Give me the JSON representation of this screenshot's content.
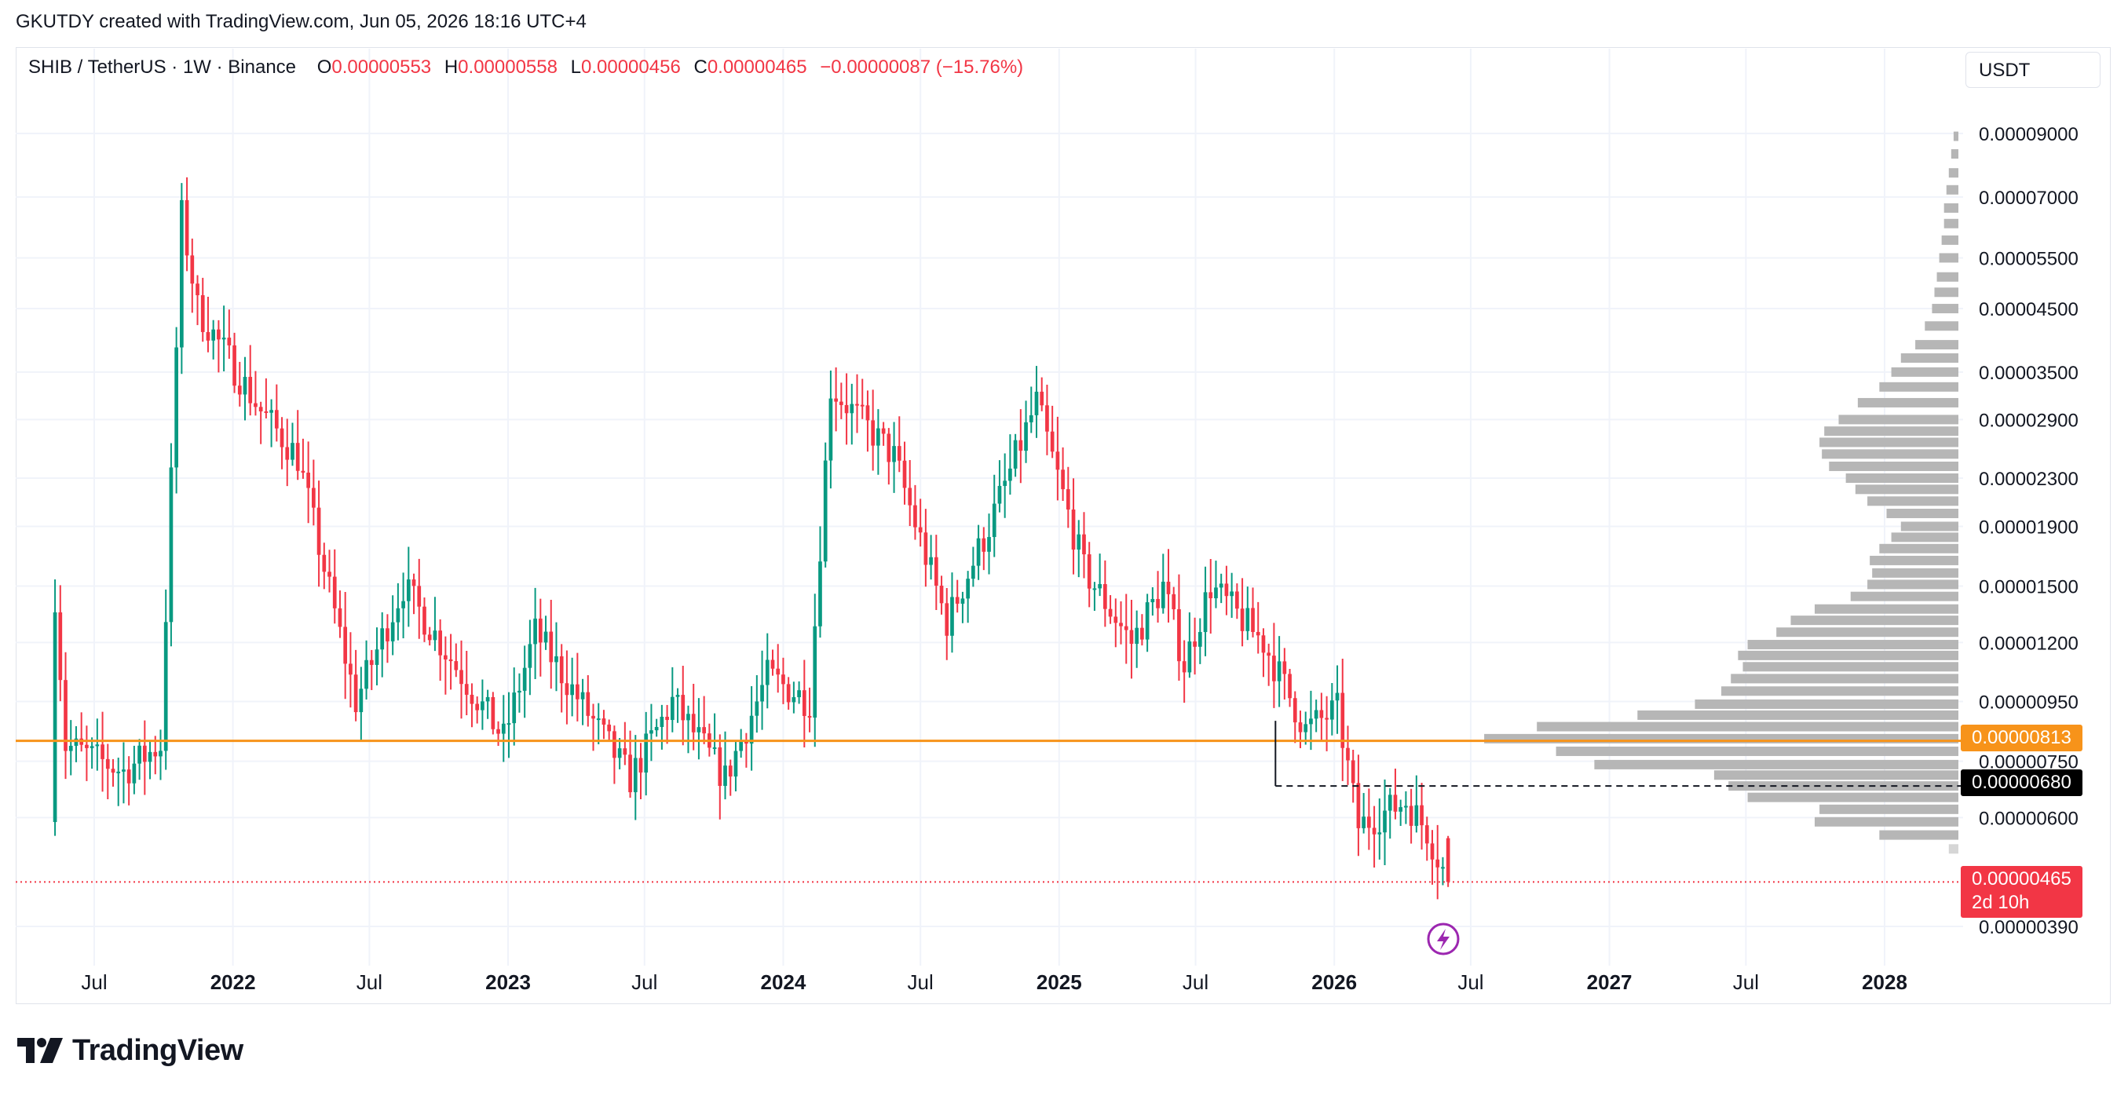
{
  "header": {
    "caption": "GKUTDY created with TradingView.com, Jun 05, 2026 18:16 UTC+4"
  },
  "legend": {
    "symbol": "SHIB / TetherUS · 1W · Binance",
    "o_label": "O",
    "o_value": "0.00000553",
    "h_label": "H",
    "h_value": "0.00000558",
    "l_label": "L",
    "l_value": "0.00000456",
    "c_label": "C",
    "c_value": "0.00000465",
    "change": "−0.00000087 (−15.76%)"
  },
  "currency_button": "USDT",
  "brand": {
    "name": "TradingView"
  },
  "colors": {
    "up": "#089981",
    "down": "#f23645",
    "level": "#f7931a",
    "profile": "#b2b2b2",
    "grid": "#f0f3fa"
  },
  "icons": {
    "flash": "lightning-icon",
    "logo": "tradingview-logo-icon"
  },
  "chart_data": {
    "type": "candlestick",
    "interval": "1W",
    "scale": "log",
    "ylim": [
      3.5e-06,
      9.5e-06
    ],
    "y_ticks": [
      "0.00009000",
      "0.00007000",
      "0.00005500",
      "0.00004500",
      "0.00003500",
      "0.00002900",
      "0.00002300",
      "0.00001900",
      "0.00001500",
      "0.00001200",
      "0.00000950",
      "0.00000750",
      "0.00000600",
      "0.00000390"
    ],
    "y_tick_values": [
      9e-05,
      7e-05,
      5.5e-05,
      4.5e-05,
      3.5e-05,
      2.9e-05,
      2.3e-05,
      1.9e-05,
      1.5e-05,
      1.2e-05,
      9.5e-06,
      7.5e-06,
      6e-06,
      3.9e-06
    ],
    "x_ticks": [
      "Jul",
      "2022",
      "Jul",
      "2023",
      "Jul",
      "2024",
      "Jul",
      "2025",
      "Jul",
      "2026",
      "Jul",
      "2027",
      "Jul",
      "2028"
    ],
    "x_tick_dates": [
      "2021-07-01",
      "2022-01-01",
      "2022-07-01",
      "2023-01-01",
      "2023-07-01",
      "2024-01-01",
      "2024-07-01",
      "2025-01-01",
      "2025-07-01",
      "2026-01-01",
      "2026-07-01",
      "2027-01-01",
      "2027-07-01",
      "2028-01-01"
    ],
    "x_tick_bold": [
      false,
      true,
      false,
      true,
      false,
      true,
      false,
      true,
      false,
      true,
      false,
      true,
      false,
      true
    ],
    "levels": [
      {
        "value": 8.13e-06,
        "label": "0.00000813",
        "style": "solid",
        "color": "#f7931a"
      },
      {
        "value": 6.8e-06,
        "label": "0.00000680",
        "style": "dashed",
        "color": "#131722",
        "start": "2025-10-15"
      }
    ],
    "last_price": {
      "value": 4.65e-06,
      "label": "0.00000465",
      "countdown": "2d 10h"
    },
    "anchors": [
      {
        "date": "2021-05-10",
        "close": 1.45e-05
      },
      {
        "date": "2021-05-24",
        "close": 8e-06
      },
      {
        "date": "2021-08-09",
        "close": 7.2e-06
      },
      {
        "date": "2021-09-27",
        "close": 8e-06
      },
      {
        "date": "2021-10-25",
        "close": 6.5e-05
      },
      {
        "date": "2021-11-15",
        "close": 4.5e-05
      },
      {
        "date": "2022-02-07",
        "close": 3e-05
      },
      {
        "date": "2022-03-28",
        "close": 2.5e-05
      },
      {
        "date": "2022-06-13",
        "close": 9.5e-06
      },
      {
        "date": "2022-08-15",
        "close": 1.5e-05
      },
      {
        "date": "2022-12-26",
        "close": 8.2e-06
      },
      {
        "date": "2023-02-06",
        "close": 1.25e-05
      },
      {
        "date": "2023-06-12",
        "close": 7e-06
      },
      {
        "date": "2023-08-07",
        "close": 9.5e-06
      },
      {
        "date": "2023-10-16",
        "close": 7e-06
      },
      {
        "date": "2023-12-11",
        "close": 1.05e-05
      },
      {
        "date": "2024-02-05",
        "close": 9.5e-06
      },
      {
        "date": "2024-03-04",
        "close": 3.3e-05
      },
      {
        "date": "2024-05-27",
        "close": 2.5e-05
      },
      {
        "date": "2024-08-05",
        "close": 1.3e-05
      },
      {
        "date": "2024-09-30",
        "close": 1.9e-05
      },
      {
        "date": "2024-12-02",
        "close": 3.1e-05
      },
      {
        "date": "2025-02-03",
        "close": 1.6e-05
      },
      {
        "date": "2025-04-07",
        "close": 1.2e-05
      },
      {
        "date": "2025-05-19",
        "close": 1.5e-05
      },
      {
        "date": "2025-06-16",
        "close": 1.1e-05
      },
      {
        "date": "2025-07-21",
        "close": 1.5e-05
      },
      {
        "date": "2025-09-29",
        "close": 1.2e-05
      },
      {
        "date": "2025-11-24",
        "close": 8.5e-06
      },
      {
        "date": "2026-01-05",
        "close": 9.2e-06
      },
      {
        "date": "2026-02-02",
        "close": 5.8e-06
      },
      {
        "date": "2026-04-06",
        "close": 6.4e-06
      },
      {
        "date": "2026-05-04",
        "close": 5.7e-06
      },
      {
        "date": "2026-06-01",
        "close": 4.65e-06
      }
    ],
    "volume_profile": [
      {
        "price": 8.9e-05,
        "weight": 0.02
      },
      {
        "price": 8.3e-05,
        "weight": 0.03
      },
      {
        "price": 7.7e-05,
        "weight": 0.04
      },
      {
        "price": 7.2e-05,
        "weight": 0.05
      },
      {
        "price": 6.7e-05,
        "weight": 0.06
      },
      {
        "price": 6.3e-05,
        "weight": 0.06
      },
      {
        "price": 5.9e-05,
        "weight": 0.07
      },
      {
        "price": 5.5e-05,
        "weight": 0.08
      },
      {
        "price": 5.1e-05,
        "weight": 0.09
      },
      {
        "price": 4.8e-05,
        "weight": 0.1
      },
      {
        "price": 4.5e-05,
        "weight": 0.11
      },
      {
        "price": 4.2e-05,
        "weight": 0.14
      },
      {
        "price": 3.9e-05,
        "weight": 0.18
      },
      {
        "price": 3.7e-05,
        "weight": 0.24
      },
      {
        "price": 3.5e-05,
        "weight": 0.28
      },
      {
        "price": 3.3e-05,
        "weight": 0.33
      },
      {
        "price": 3.1e-05,
        "weight": 0.42
      },
      {
        "price": 2.9e-05,
        "weight": 0.5
      },
      {
        "price": 2.77e-05,
        "weight": 0.56
      },
      {
        "price": 2.65e-05,
        "weight": 0.58
      },
      {
        "price": 2.53e-05,
        "weight": 0.57
      },
      {
        "price": 2.41e-05,
        "weight": 0.54
      },
      {
        "price": 2.3e-05,
        "weight": 0.47
      },
      {
        "price": 2.2e-05,
        "weight": 0.43
      },
      {
        "price": 2.1e-05,
        "weight": 0.38
      },
      {
        "price": 2e-05,
        "weight": 0.3
      },
      {
        "price": 1.9e-05,
        "weight": 0.24
      },
      {
        "price": 1.82e-05,
        "weight": 0.28
      },
      {
        "price": 1.74e-05,
        "weight": 0.33
      },
      {
        "price": 1.66e-05,
        "weight": 0.37
      },
      {
        "price": 1.58e-05,
        "weight": 0.36
      },
      {
        "price": 1.51e-05,
        "weight": 0.38
      },
      {
        "price": 1.44e-05,
        "weight": 0.45
      },
      {
        "price": 1.37e-05,
        "weight": 0.6
      },
      {
        "price": 1.31e-05,
        "weight": 0.7
      },
      {
        "price": 1.25e-05,
        "weight": 0.76
      },
      {
        "price": 1.19e-05,
        "weight": 0.88
      },
      {
        "price": 1.14e-05,
        "weight": 0.92
      },
      {
        "price": 1.09e-05,
        "weight": 0.9
      },
      {
        "price": 1.04e-05,
        "weight": 0.95
      },
      {
        "price": 9.9e-06,
        "weight": 0.99
      },
      {
        "price": 9.4e-06,
        "weight": 1.1
      },
      {
        "price": 9e-06,
        "weight": 1.34
      },
      {
        "price": 8.6e-06,
        "weight": 1.76
      },
      {
        "price": 8.2e-06,
        "weight": 1.98
      },
      {
        "price": 7.8e-06,
        "weight": 1.68
      },
      {
        "price": 7.4e-06,
        "weight": 1.52
      },
      {
        "price": 7.1e-06,
        "weight": 1.02
      },
      {
        "price": 6.8e-06,
        "weight": 0.96
      },
      {
        "price": 6.5e-06,
        "weight": 0.88
      },
      {
        "price": 6.2e-06,
        "weight": 0.58
      },
      {
        "price": 5.9e-06,
        "weight": 0.6
      },
      {
        "price": 5.6e-06,
        "weight": 0.33
      },
      {
        "price": 5.3e-06,
        "weight": 0.04
      }
    ]
  }
}
